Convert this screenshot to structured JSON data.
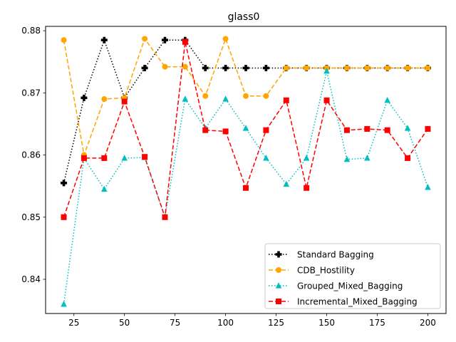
{
  "chart_data": {
    "type": "line",
    "title": "glass0",
    "xlabel": "",
    "ylabel": "",
    "xlim": [
      11,
      209
    ],
    "ylim": [
      0.8345,
      0.8807
    ],
    "x_ticks": [
      25,
      50,
      75,
      100,
      125,
      150,
      175,
      200
    ],
    "y_ticks": [
      0.84,
      0.85,
      0.86,
      0.87,
      0.88
    ],
    "grid": false,
    "legend_position": "lower-right",
    "x": [
      20,
      30,
      40,
      50,
      60,
      70,
      80,
      90,
      100,
      110,
      120,
      130,
      140,
      150,
      160,
      170,
      180,
      190,
      200
    ],
    "series": [
      {
        "name": "Standard Bagging",
        "color": "#000000",
        "linestyle": "dotted",
        "marker": "plus",
        "values": [
          0.8555,
          0.8692,
          0.8785,
          0.8692,
          0.874,
          0.8785,
          0.8785,
          0.874,
          0.874,
          0.874,
          0.874,
          0.874,
          0.874,
          0.874,
          0.874,
          0.874,
          0.874,
          0.874,
          0.874
        ]
      },
      {
        "name": "CDB_Hostility",
        "color": "#ffa500",
        "linestyle": "dashed",
        "marker": "circle",
        "values": [
          0.8785,
          0.86,
          0.869,
          0.8692,
          0.8787,
          0.8742,
          0.8742,
          0.8695,
          0.8787,
          0.8695,
          0.8695,
          0.874,
          0.874,
          0.874,
          0.874,
          0.874,
          0.874,
          0.874,
          0.874
        ]
      },
      {
        "name": "Grouped_Mixed_Bagging",
        "color": "#00bfbf",
        "linestyle": "dotted",
        "marker": "triangle",
        "values": [
          0.836,
          0.8595,
          0.8545,
          0.8595,
          0.8596,
          0.85,
          0.869,
          0.8643,
          0.869,
          0.8643,
          0.8595,
          0.8553,
          0.8595,
          0.8735,
          0.8593,
          0.8595,
          0.8688,
          0.8643,
          0.8548
        ]
      },
      {
        "name": "Incremental_Mixed_Bagging",
        "color": "#ff0000",
        "linestyle": "dashed",
        "marker": "square",
        "values": [
          0.85,
          0.8595,
          0.8595,
          0.8686,
          0.8597,
          0.85,
          0.8782,
          0.864,
          0.8638,
          0.8547,
          0.864,
          0.8688,
          0.8547,
          0.8688,
          0.864,
          0.8642,
          0.864,
          0.8595,
          0.8642
        ]
      }
    ]
  }
}
